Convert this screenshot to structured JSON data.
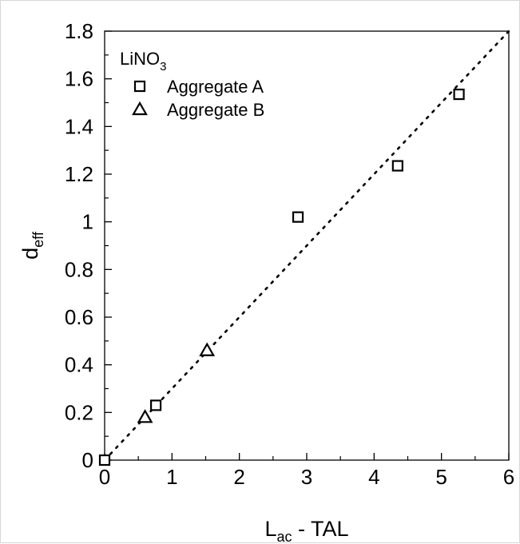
{
  "chart_data": {
    "type": "scatter",
    "title": "",
    "xlabel": {
      "main": "L",
      "sub": "ac",
      "rest": " - TAL"
    },
    "ylabel": {
      "main": "d",
      "sub": "eff"
    },
    "xlim": [
      0,
      6
    ],
    "ylim": [
      0,
      1.8
    ],
    "xticks": [
      0,
      1,
      2,
      3,
      4,
      5,
      6
    ],
    "xtick_labels": [
      "0",
      "1",
      "2",
      "3",
      "4",
      "5",
      "6"
    ],
    "yticks": [
      0,
      0.2,
      0.4,
      0.6,
      0.8,
      1.0,
      1.2,
      1.4,
      1.6,
      1.8
    ],
    "ytick_labels": [
      "0",
      "0.2",
      "0.4",
      "0.6",
      "0.8",
      "1",
      "1.2",
      "1.4",
      "1.6",
      "1.8"
    ],
    "grid": false,
    "legend": {
      "position": "top-left",
      "title": {
        "main": "LiNO",
        "sub": "3"
      }
    },
    "series": [
      {
        "name": "Aggregate A",
        "marker": "square",
        "points": [
          {
            "x": 0.0,
            "y": 0.0
          },
          {
            "x": 0.76,
            "y": 0.23
          },
          {
            "x": 2.87,
            "y": 1.02
          },
          {
            "x": 4.35,
            "y": 1.235
          },
          {
            "x": 5.26,
            "y": 1.535
          }
        ]
      },
      {
        "name": "Aggregate B",
        "marker": "triangle",
        "points": [
          {
            "x": 0.6,
            "y": 0.18
          },
          {
            "x": 1.52,
            "y": 0.46
          }
        ]
      }
    ],
    "reference_line": {
      "style": "dotted",
      "x": [
        0,
        6
      ],
      "y": [
        0,
        1.8
      ]
    }
  }
}
